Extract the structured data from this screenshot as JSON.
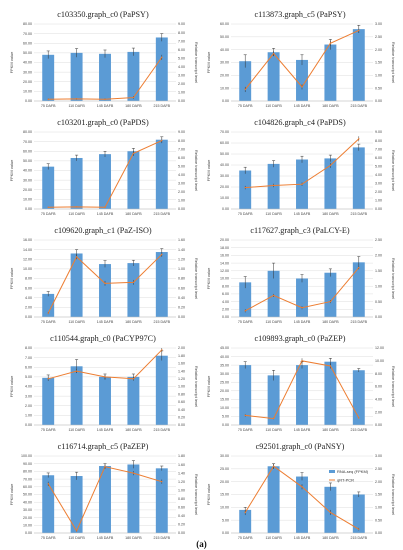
{
  "caption": "(a)",
  "legend": {
    "bar_label": "RNA-seq (FPKM)",
    "line_label": "qRT-PCR"
  },
  "colors": {
    "bar": "#5b9bd5",
    "line": "#ed7d31"
  },
  "chart_data": [
    {
      "type": "bar",
      "title": "c103350.graph_c0 (PaPSY)",
      "categories": [
        "75 DAFB",
        "110 DAFB",
        "145 DAFB",
        "180 DAFB",
        "215 DAFB"
      ],
      "ylabel": "FPKM value",
      "y2label": "Relative transcript level",
      "ylim": [
        0,
        80
      ],
      "yticks": [
        "0.00",
        "10.00",
        "20.00",
        "30.00",
        "40.00",
        "50.00",
        "60.00",
        "70.00",
        "80.00"
      ],
      "y2lim": [
        0,
        9
      ],
      "y2ticks": [
        "0.00",
        "1.00",
        "2.00",
        "3.00",
        "4.00",
        "5.00",
        "6.00",
        "7.00",
        "8.00",
        "9.00"
      ],
      "bars": [
        48,
        50,
        49,
        51,
        66
      ],
      "bar_errors": [
        4,
        4.5,
        4,
        4,
        4
      ],
      "line": [
        0.2,
        0.25,
        0.2,
        0.4,
        5.1
      ],
      "line_errors": [
        0.1,
        0.1,
        0.1,
        0.15,
        0.3
      ]
    },
    {
      "type": "bar",
      "title": "c113873.graph_c5 (PaPSY)",
      "categories": [
        "75 DAFB",
        "110 DAFB",
        "145 DAFB",
        "180 DAFB",
        "215 DAFB"
      ],
      "ylabel": "FPKM value",
      "y2label": "Relative transcript level",
      "ylim": [
        0,
        60
      ],
      "yticks": [
        "0.00",
        "10.00",
        "20.00",
        "30.00",
        "40.00",
        "50.00",
        "60.00"
      ],
      "y2lim": [
        0,
        3
      ],
      "y2ticks": [
        "0.00",
        "0.50",
        "1.00",
        "1.50",
        "2.00",
        "2.50",
        "3.00"
      ],
      "bars": [
        31,
        38,
        32,
        44,
        56
      ],
      "bar_errors": [
        5,
        3,
        4,
        4,
        3
      ],
      "line": [
        0.45,
        1.85,
        0.55,
        2.25,
        2.75
      ],
      "line_errors": [
        0.1,
        0.1,
        0.1,
        0.1,
        0.1
      ]
    },
    {
      "type": "bar",
      "title": "c103201.graph_c0 (PaPDS)",
      "categories": [
        "75 DAFB",
        "110 DAFB",
        "145 DAFB",
        "180 DAFB",
        "215 DAFB"
      ],
      "ylabel": "FPKM value",
      "y2label": "Relative transcript level",
      "ylim": [
        0,
        80
      ],
      "yticks": [
        "0.00",
        "10.00",
        "20.00",
        "30.00",
        "40.00",
        "50.00",
        "60.00",
        "70.00",
        "80.00"
      ],
      "y2lim": [
        0,
        9
      ],
      "y2ticks": [
        "0.00",
        "1.00",
        "2.00",
        "3.00",
        "4.00",
        "5.00",
        "6.00",
        "7.00",
        "8.00",
        "9.00"
      ],
      "bars": [
        44,
        53,
        57,
        60,
        72
      ],
      "bar_errors": [
        3,
        3,
        3,
        3,
        3
      ],
      "line": [
        0.2,
        0.25,
        0.2,
        6.5,
        8.0
      ],
      "line_errors": [
        0.05,
        0.05,
        0.05,
        0.3,
        0.3
      ]
    },
    {
      "type": "bar",
      "title": "c104826.graph_c4 (PaPDS)",
      "categories": [
        "75 DAFB",
        "110 DAFB",
        "145 DAFB",
        "180 DAFB",
        "215 DAFB"
      ],
      "ylabel": "FPKM value",
      "y2label": "Relative transcript level",
      "ylim": [
        0,
        70
      ],
      "yticks": [
        "0.00",
        "10.00",
        "20.00",
        "30.00",
        "40.00",
        "50.00",
        "60.00",
        "70.00"
      ],
      "y2lim": [
        0,
        9
      ],
      "y2ticks": [
        "0.00",
        "1.00",
        "2.00",
        "3.00",
        "4.00",
        "5.00",
        "6.00",
        "7.00",
        "8.00",
        "9.00"
      ],
      "bars": [
        35,
        41,
        45,
        46,
        56
      ],
      "bar_errors": [
        3,
        3,
        3,
        3,
        3
      ],
      "line": [
        2.5,
        2.75,
        2.9,
        5.1,
        8.2
      ],
      "line_errors": [
        0.2,
        0.2,
        0.2,
        0.3,
        0.3
      ]
    },
    {
      "type": "bar",
      "title": "c109620.graph_c1 (PaZ-ISO)",
      "categories": [
        "75 DAFB",
        "110 DAFB",
        "145 DAFB",
        "180 DAFB",
        "215 DAFB"
      ],
      "ylabel": "FPKM value",
      "y2label": "Relative transcript level",
      "ylim": [
        0,
        16
      ],
      "yticks": [
        "0.00",
        "2.00",
        "4.00",
        "6.00",
        "8.00",
        "10.00",
        "12.00",
        "14.00",
        "16.00"
      ],
      "y2lim": [
        0,
        1.6
      ],
      "y2ticks": [
        "0.00",
        "0.20",
        "0.40",
        "0.60",
        "0.80",
        "1.00",
        "1.20",
        "1.40",
        "1.60"
      ],
      "bars": [
        4.8,
        13.2,
        11,
        11.2,
        13.5
      ],
      "bar_errors": [
        0.5,
        0.8,
        0.7,
        0.6,
        0.7
      ],
      "line": [
        0.08,
        1.25,
        0.7,
        0.72,
        1.3
      ],
      "line_errors": [
        0.02,
        0.05,
        0.05,
        0.05,
        0.05
      ]
    },
    {
      "type": "bar",
      "title": "c117627.graph_c3 (PaLCY-E)",
      "categories": [
        "75 DAFB",
        "110 DAFB",
        "145 DAFB",
        "180 DAFB",
        "215 DAFB"
      ],
      "ylabel": "FPKM value",
      "y2label": "Relative transcript level",
      "ylim": [
        0,
        20
      ],
      "yticks": [
        "0.00",
        "2.00",
        "4.00",
        "6.00",
        "8.00",
        "10.00",
        "12.00",
        "14.00",
        "16.00",
        "18.00",
        "20.00"
      ],
      "y2lim": [
        0,
        2.5
      ],
      "y2ticks": [
        "0.00",
        "0.50",
        "1.00",
        "1.50",
        "2.00",
        "2.50"
      ],
      "bars": [
        9,
        12,
        10,
        11.5,
        14.2
      ],
      "bar_errors": [
        1.5,
        2,
        1,
        1,
        1.5
      ],
      "line": [
        0.2,
        0.7,
        0.3,
        0.5,
        1.6
      ],
      "line_errors": [
        0.05,
        0.05,
        0.05,
        0.05,
        0.05
      ]
    },
    {
      "type": "bar",
      "title": "c110544.graph_c0 (PaCYP97C)",
      "categories": [
        "75 DAFB",
        "110 DAFB",
        "145 DAFB",
        "180 DAFB",
        "215 DAFB"
      ],
      "ylabel": "FPKM value",
      "y2label": "Relative transcript level",
      "ylim": [
        0,
        8
      ],
      "yticks": [
        "0.00",
        "1.00",
        "2.00",
        "3.00",
        "4.00",
        "5.00",
        "6.00",
        "7.00",
        "8.00"
      ],
      "y2lim": [
        0,
        2
      ],
      "y2ticks": [
        "0.00",
        "0.20",
        "0.40",
        "0.60",
        "0.80",
        "1.00",
        "1.20",
        "1.40",
        "1.60",
        "1.80",
        "2.00"
      ],
      "bars": [
        4.9,
        6.1,
        5.0,
        5.0,
        7.2
      ],
      "bar_errors": [
        0.3,
        0.7,
        0.3,
        0.3,
        0.5
      ],
      "line": [
        1.2,
        1.4,
        1.25,
        1.2,
        1.95
      ],
      "line_errors": [
        0.05,
        0.05,
        0.05,
        0.05,
        0.05
      ]
    },
    {
      "type": "bar",
      "title": "c109893.graph_c0 (PaZEP)",
      "categories": [
        "75 DAFB",
        "110 DAFB",
        "145 DAFB",
        "180 DAFB",
        "215 DAFB"
      ],
      "ylabel": "FPKM value",
      "y2label": "Relative transcript level",
      "ylim": [
        0,
        45
      ],
      "yticks": [
        "0.00",
        "5.00",
        "10.00",
        "15.00",
        "20.00",
        "25.00",
        "30.00",
        "35.00",
        "40.00",
        "45.00"
      ],
      "y2lim": [
        0,
        12
      ],
      "y2ticks": [
        "0.00",
        "2.00",
        "4.00",
        "6.00",
        "8.00",
        "10.00",
        "12.00"
      ],
      "bars": [
        35,
        29,
        35,
        37,
        32
      ],
      "bar_errors": [
        2,
        3,
        2,
        2,
        1
      ],
      "line": [
        1.5,
        1.0,
        10.0,
        9.2,
        1.1
      ],
      "line_errors": [
        0.2,
        0.1,
        0.4,
        0.4,
        0.1
      ]
    },
    {
      "type": "bar",
      "title": "c116714.graph_c5 (PaZEP)",
      "categories": [
        "75 DAFB",
        "110 DAFB",
        "145 DAFB",
        "180 DAFB",
        "215 DAFB"
      ],
      "ylabel": "FPKM value",
      "y2label": "Relative transcript level",
      "ylim": [
        0,
        100
      ],
      "yticks": [
        "0.00",
        "10.00",
        "20.00",
        "30.00",
        "40.00",
        "50.00",
        "60.00",
        "70.00",
        "80.00",
        "90.00",
        "100.00"
      ],
      "y2lim": [
        0,
        1.8
      ],
      "y2ticks": [
        "0.00",
        "0.20",
        "0.40",
        "0.60",
        "0.80",
        "1.00",
        "1.20",
        "1.40",
        "1.60",
        "1.80"
      ],
      "bars": [
        75,
        74,
        87,
        89,
        84
      ],
      "bar_errors": [
        3,
        5,
        3,
        5,
        3
      ],
      "line": [
        1.15,
        0.05,
        1.55,
        1.4,
        1.2
      ],
      "line_errors": [
        0.05,
        0.02,
        0.05,
        0.05,
        0.05
      ]
    },
    {
      "type": "bar",
      "title": "c92501.graph_c0 (PaNSY)",
      "categories": [
        "75 DAFB",
        "110 DAFB",
        "145 DAFB",
        "180 DAFB",
        "215 DAFB"
      ],
      "ylabel": "FPKM value",
      "y2label": "Relative transcript level",
      "ylim": [
        0,
        30
      ],
      "yticks": [
        "0.00",
        "5.00",
        "10.00",
        "15.00",
        "20.00",
        "25.00",
        "30.00"
      ],
      "y2lim": [
        0,
        3
      ],
      "y2ticks": [
        "0.00",
        "0.50",
        "1.00",
        "1.50",
        "2.00",
        "2.50",
        "3.00"
      ],
      "bars": [
        9,
        26,
        22,
        18,
        15
      ],
      "bar_errors": [
        1,
        1,
        1.5,
        1.5,
        1
      ],
      "line": [
        0.8,
        2.6,
        1.8,
        0.8,
        0.15
      ],
      "line_errors": [
        0.1,
        0.1,
        0.1,
        0.1,
        0.05
      ]
    }
  ]
}
